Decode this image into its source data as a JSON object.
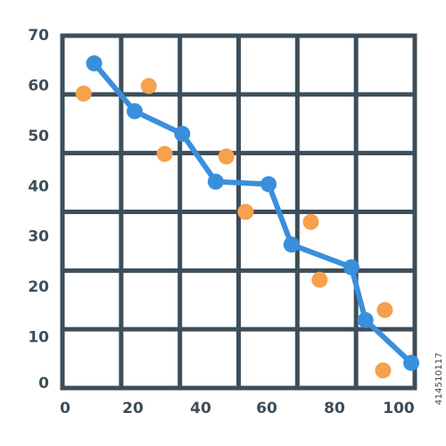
{
  "chart_data": {
    "type": "scatter",
    "grid": true,
    "xlim": [
      0,
      100
    ],
    "ylim": [
      0,
      70
    ],
    "x_ticks": [
      "0",
      "20",
      "40",
      "60",
      "80",
      "100"
    ],
    "y_ticks": [
      "0",
      "10",
      "20",
      "30",
      "40",
      "50",
      "60",
      "70"
    ],
    "series": [
      {
        "type": "line",
        "color": "#3a8fdc",
        "points": [
          {
            "x": 9,
            "y": 64.5
          },
          {
            "x": 20.5,
            "y": 55
          },
          {
            "x": 34,
            "y": 50.5
          },
          {
            "x": 43.5,
            "y": 41
          },
          {
            "x": 58.5,
            "y": 40.5
          },
          {
            "x": 65,
            "y": 28.5
          },
          {
            "x": 82,
            "y": 24
          },
          {
            "x": 86,
            "y": 13.5
          },
          {
            "x": 99,
            "y": 5
          }
        ]
      },
      {
        "type": "scatter",
        "color": "#f5a14e",
        "points": [
          {
            "x": 6,
            "y": 58.5
          },
          {
            "x": 24.5,
            "y": 60
          },
          {
            "x": 29,
            "y": 46.5
          },
          {
            "x": 46.5,
            "y": 46
          },
          {
            "x": 52,
            "y": 35
          },
          {
            "x": 70.5,
            "y": 33
          },
          {
            "x": 73,
            "y": 21.5
          },
          {
            "x": 91.5,
            "y": 15.5
          },
          {
            "x": 91,
            "y": 3.5
          }
        ]
      }
    ]
  },
  "colors": {
    "grid": "#3d4e5a",
    "tick_text": "#3d4e5a",
    "line": "#3a8fdc",
    "scatter": "#f5a14e"
  },
  "stock_id": "414510117"
}
